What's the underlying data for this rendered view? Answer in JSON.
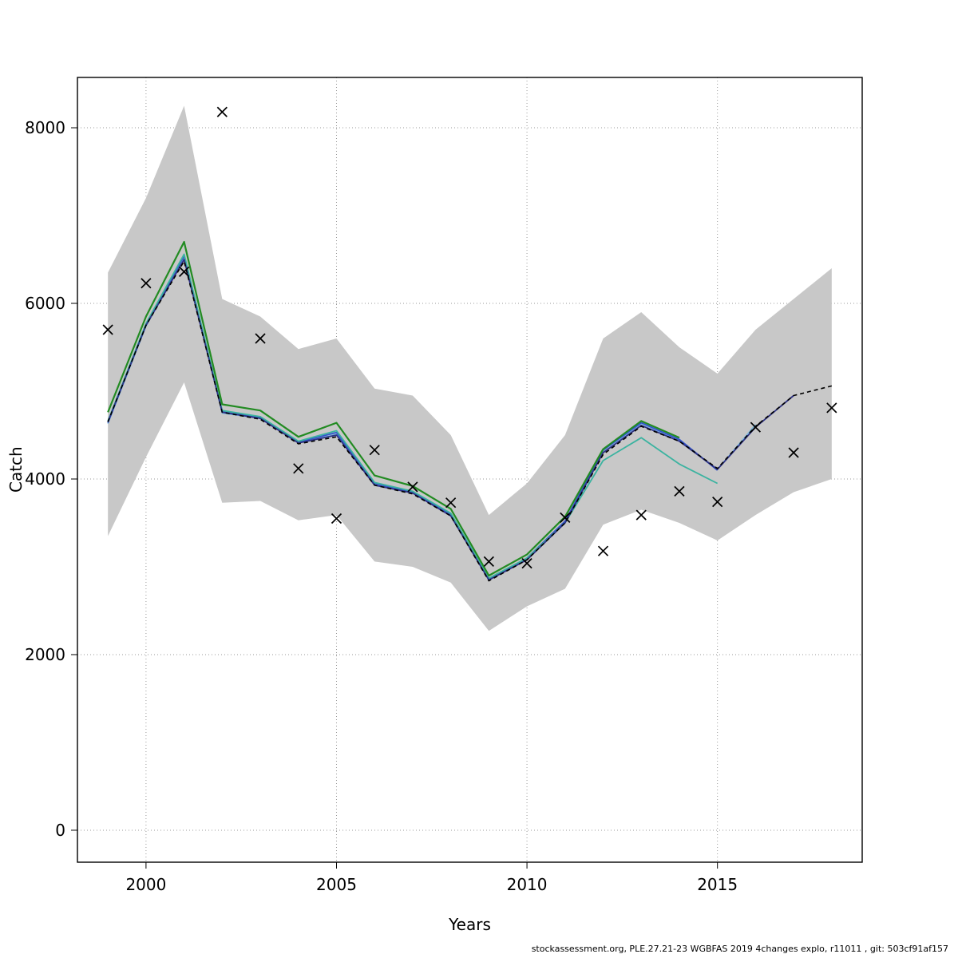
{
  "figure": {
    "background": "#ffffff",
    "footer": "stockassessment.org, PLE.27.21-23 WGBFAS 2019 4changes explo, r11011 , git: 503cf91af157"
  },
  "chart_data": {
    "type": "line",
    "title": "",
    "xlabel": "Years",
    "ylabel": "Catch",
    "xlim": [
      1998.2,
      2018.8
    ],
    "ylim": [
      -364,
      8573
    ],
    "xticks": [
      2000,
      2005,
      2010,
      2015
    ],
    "yticks": [
      0,
      2000,
      4000,
      6000,
      8000
    ],
    "x_tick_labels": [
      "2000",
      "2005",
      "2010",
      "2015"
    ],
    "y_tick_labels": [
      "0",
      "2000",
      "4000",
      "6000",
      "8000"
    ],
    "grid": {
      "style": "dotted",
      "color": "#9a9a9a"
    },
    "band": {
      "name": "confidence-band",
      "color": "#c8c8c8",
      "years": [
        1999,
        2000,
        2001,
        2002,
        2003,
        2004,
        2005,
        2006,
        2007,
        2008,
        2009,
        2010,
        2011,
        2012,
        2013,
        2014,
        2015,
        2016,
        2017,
        2018
      ],
      "upper": [
        6350,
        7200,
        8250,
        6050,
        5850,
        5480,
        5600,
        5030,
        4950,
        4500,
        3590,
        3950,
        4500,
        5600,
        5900,
        5500,
        5200,
        5700,
        6050,
        6400
      ],
      "lower": [
        3350,
        4250,
        5100,
        3730,
        3750,
        3530,
        3590,
        3060,
        3000,
        2820,
        2270,
        2550,
        2750,
        3480,
        3650,
        3500,
        3300,
        3590,
        3850,
        4000
      ]
    },
    "series": [
      {
        "name": "retro-run-lightblue",
        "color": "#79b7dd",
        "width": 1.5,
        "dash": "",
        "years": [
          1999,
          2000,
          2001,
          2002,
          2003,
          2004,
          2005,
          2006,
          2007,
          2008,
          2009,
          2010,
          2011,
          2012,
          2013,
          2014,
          2015,
          2016
        ],
        "values": [
          4630,
          5740,
          6520,
          4750,
          4690,
          4410,
          4510,
          3940,
          3840,
          3590,
          2850,
          3090,
          3510,
          4320,
          4630,
          4440,
          4110,
          4620
        ]
      },
      {
        "name": "retro-run-blue",
        "color": "#3355cc",
        "width": 1.8,
        "dash": "",
        "years": [
          1999,
          2000,
          2001,
          2002,
          2003,
          2004,
          2005,
          2006,
          2007,
          2008,
          2009,
          2010,
          2011,
          2012,
          2013,
          2014,
          2015
        ],
        "values": [
          4640,
          5760,
          6540,
          4770,
          4700,
          4420,
          4530,
          3950,
          3850,
          3600,
          2860,
          3100,
          3520,
          4330,
          4640,
          4450,
          4100
        ]
      },
      {
        "name": "retro-run-teal",
        "color": "#3bb3a0",
        "width": 1.8,
        "dash": "",
        "years": [
          1999,
          2000,
          2001,
          2002,
          2003,
          2004,
          2005,
          2006,
          2007,
          2008,
          2009,
          2010,
          2011,
          2012,
          2013,
          2014,
          2015
        ],
        "values": [
          4660,
          5770,
          6560,
          4780,
          4710,
          4430,
          4550,
          3960,
          3860,
          3610,
          2870,
          3100,
          3500,
          4210,
          4470,
          4170,
          3950
        ]
      },
      {
        "name": "retro-run-navy",
        "color": "#2d3184",
        "width": 1.8,
        "dash": "",
        "years": [
          1999,
          2000,
          2001,
          2002,
          2003,
          2004,
          2005,
          2006,
          2007,
          2008,
          2009,
          2010,
          2011,
          2012,
          2013,
          2014,
          2015,
          2016,
          2017
        ],
        "values": [
          4650,
          5750,
          6500,
          4760,
          4690,
          4410,
          4500,
          3930,
          3840,
          3580,
          2850,
          3080,
          3500,
          4300,
          4610,
          4430,
          4110,
          4590,
          4950
        ]
      },
      {
        "name": "retro-run-green",
        "color": "#228B22",
        "width": 2.2,
        "dash": "",
        "years": [
          1999,
          2000,
          2001,
          2002,
          2003,
          2004,
          2005,
          2006,
          2007,
          2008,
          2009,
          2010,
          2011,
          2012,
          2013,
          2014
        ],
        "values": [
          4760,
          5850,
          6700,
          4850,
          4780,
          4480,
          4640,
          4040,
          3920,
          3660,
          2900,
          3140,
          3570,
          4340,
          4660,
          4470
        ]
      },
      {
        "name": "base-run-dashed",
        "color": "#000000",
        "width": 1.6,
        "dash": "5 4",
        "years": [
          1999,
          2000,
          2001,
          2002,
          2003,
          2004,
          2005,
          2006,
          2007,
          2008,
          2009,
          2010,
          2011,
          2012,
          2013,
          2014,
          2015,
          2016,
          2017,
          2018
        ],
        "values": [
          4650,
          5750,
          6480,
          4760,
          4680,
          4400,
          4480,
          3930,
          3830,
          3580,
          2840,
          3080,
          3500,
          4280,
          4600,
          4430,
          4120,
          4600,
          4950,
          5060
        ]
      }
    ],
    "markers": {
      "name": "observed-catch-points",
      "symbol": "x",
      "color": "#000000",
      "years": [
        1999,
        2000,
        2001,
        2002,
        2003,
        2004,
        2005,
        2006,
        2007,
        2008,
        2009,
        2010,
        2011,
        2012,
        2013,
        2014,
        2015,
        2016,
        2017,
        2018
      ],
      "values": [
        5700,
        6230,
        6360,
        8180,
        5600,
        4120,
        3550,
        4330,
        3910,
        3730,
        3060,
        3040,
        3560,
        3180,
        3590,
        3860,
        3740,
        4590,
        4300,
        4810
      ]
    },
    "legend": null
  }
}
